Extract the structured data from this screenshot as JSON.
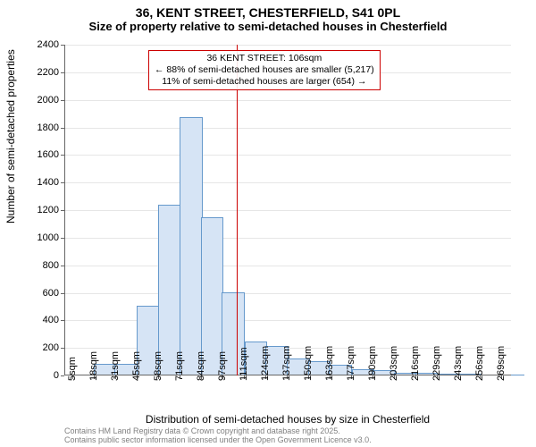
{
  "title": {
    "main": "36, KENT STREET, CHESTERFIELD, S41 0PL",
    "sub": "Size of property relative to semi-detached houses in Chesterfield"
  },
  "chart": {
    "type": "histogram",
    "ylabel": "Number of semi-detached properties",
    "xlabel": "Distribution of semi-detached houses by size in Chesterfield",
    "ylim": [
      0,
      2400
    ],
    "ytick_step": 200,
    "xlim": [
      0,
      275
    ],
    "xtick_start": 5,
    "xtick_step": 13.2,
    "xtick_count": 21,
    "xtick_unit": "sqm",
    "bar_fill": "#d6e4f5",
    "bar_stroke": "#6699cc",
    "grid_color": "#e6e6e6",
    "background": "#ffffff",
    "axis_color": "#666666",
    "bin_width": 13.2,
    "bins": [
      {
        "x": 5,
        "count": 0
      },
      {
        "x": 18,
        "count": 80
      },
      {
        "x": 31,
        "count": 80
      },
      {
        "x": 44.5,
        "count": 500
      },
      {
        "x": 58,
        "count": 1230
      },
      {
        "x": 71,
        "count": 1870
      },
      {
        "x": 84,
        "count": 1140
      },
      {
        "x": 97,
        "count": 600
      },
      {
        "x": 111,
        "count": 240
      },
      {
        "x": 124,
        "count": 210
      },
      {
        "x": 137,
        "count": 120
      },
      {
        "x": 150,
        "count": 100
      },
      {
        "x": 163,
        "count": 70
      },
      {
        "x": 177,
        "count": 40
      },
      {
        "x": 190,
        "count": 30
      },
      {
        "x": 203,
        "count": 15
      },
      {
        "x": 216,
        "count": 10
      },
      {
        "x": 230,
        "count": 5
      },
      {
        "x": 243,
        "count": 5
      },
      {
        "x": 256,
        "count": 3
      },
      {
        "x": 269,
        "count": 2
      }
    ],
    "marker": {
      "value": 106,
      "color": "#cc0000"
    },
    "annotation": {
      "line1": "36 KENT STREET: 106sqm",
      "line2": "← 88% of semi-detached houses are smaller (5,217)",
      "line3": "11% of semi-detached houses are larger (654) →",
      "border_color": "#cc0000"
    }
  },
  "footer": {
    "line1": "Contains HM Land Registry data © Crown copyright and database right 2025.",
    "line2": "Contains public sector information licensed under the Open Government Licence v3.0."
  }
}
